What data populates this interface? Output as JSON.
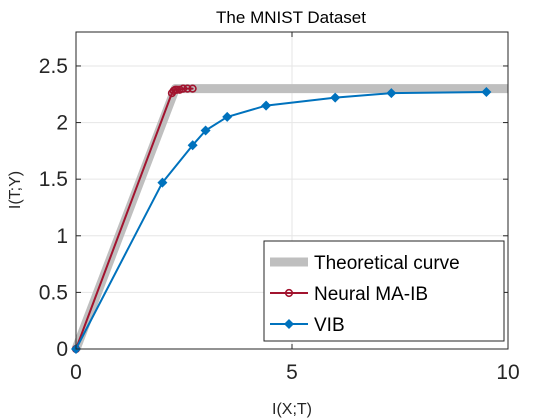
{
  "chart_data": {
    "type": "line",
    "title": "The MNIST Dataset",
    "xlabel": "I(X;T)",
    "ylabel": "I(T;Y)",
    "xlim": [
      0,
      10
    ],
    "ylim": [
      0,
      2.8
    ],
    "x_ticks": [
      0,
      5,
      10
    ],
    "x_tick_labels": [
      "0",
      "5",
      "10"
    ],
    "y_ticks": [
      0,
      0.5,
      1,
      1.5,
      2,
      2.5
    ],
    "y_tick_labels": [
      "0",
      "0.5",
      "1",
      "1.5",
      "2",
      "2.5"
    ],
    "grid": true,
    "legend_position": "bottom-right",
    "series": [
      {
        "name": "Theoretical curve",
        "color": "#bfbfbf",
        "marker": "none",
        "x": [
          0,
          2.3,
          10
        ],
        "y": [
          0,
          2.3,
          2.3
        ]
      },
      {
        "name": "Neural MA-IB",
        "color": "#a2142f",
        "marker": "circle",
        "x": [
          0,
          2.22,
          2.26,
          2.3,
          2.34,
          2.4,
          2.48,
          2.58,
          2.7
        ],
        "y": [
          0,
          2.26,
          2.28,
          2.29,
          2.29,
          2.29,
          2.3,
          2.3,
          2.3
        ]
      },
      {
        "name": "VIB",
        "color": "#0072bd",
        "marker": "diamond",
        "x": [
          0,
          2.0,
          2.7,
          3.0,
          3.5,
          4.4,
          6.0,
          7.3,
          9.5
        ],
        "y": [
          0,
          1.47,
          1.8,
          1.93,
          2.05,
          2.15,
          2.22,
          2.26,
          2.27
        ]
      }
    ]
  }
}
